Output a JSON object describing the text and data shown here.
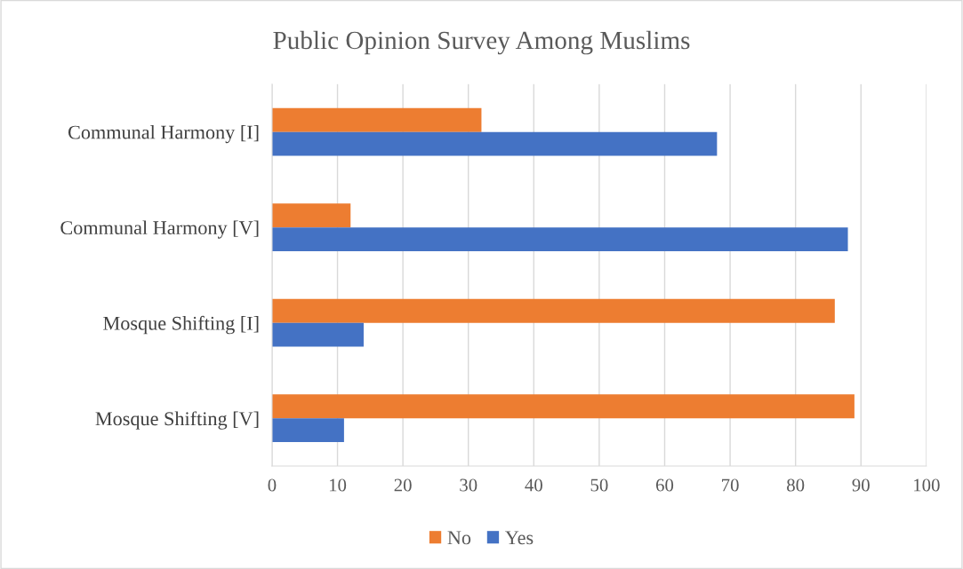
{
  "chart_data": {
    "type": "bar",
    "orientation": "horizontal",
    "title": "Public Opinion Survey Among Muslims",
    "categories": [
      "Communal Harmony [I]",
      "Communal Harmony [V]",
      "Mosque Shifting [I]",
      "Mosque Shifting [V]"
    ],
    "series": [
      {
        "name": "No",
        "color": "#ed7d31",
        "values": [
          32,
          12,
          86,
          89
        ]
      },
      {
        "name": "Yes",
        "color": "#4472c4",
        "values": [
          68,
          88,
          14,
          11
        ]
      }
    ],
    "xlim": [
      0,
      100
    ],
    "xticks": [
      0,
      10,
      20,
      30,
      40,
      50,
      60,
      70,
      80,
      90,
      100
    ],
    "grid": "x",
    "legend": "bottom"
  }
}
